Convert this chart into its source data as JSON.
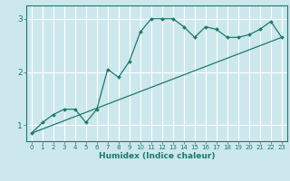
{
  "xlabel": "Humidex (Indice chaleur)",
  "bg_color": "#cce8ec",
  "grid_color": "#ffffff",
  "line_color": "#1a7a6e",
  "xlim": [
    -0.5,
    23.5
  ],
  "ylim": [
    0.7,
    3.25
  ],
  "yticks": [
    1,
    2,
    3
  ],
  "xticks": [
    0,
    1,
    2,
    3,
    4,
    5,
    6,
    7,
    8,
    9,
    10,
    11,
    12,
    13,
    14,
    15,
    16,
    17,
    18,
    19,
    20,
    21,
    22,
    23
  ],
  "data_x": [
    0,
    1,
    2,
    3,
    4,
    5,
    6,
    7,
    8,
    9,
    10,
    11,
    12,
    13,
    14,
    15,
    16,
    17,
    18,
    19,
    20,
    21,
    22,
    23
  ],
  "data_y": [
    0.85,
    1.05,
    1.2,
    1.3,
    1.3,
    1.05,
    1.3,
    2.05,
    1.9,
    2.2,
    2.75,
    3.0,
    3.0,
    3.0,
    2.85,
    2.65,
    2.85,
    2.8,
    2.65,
    2.65,
    2.7,
    2.8,
    2.95,
    2.65
  ],
  "trend_x": [
    0,
    23
  ],
  "trend_y": [
    0.85,
    2.65
  ]
}
